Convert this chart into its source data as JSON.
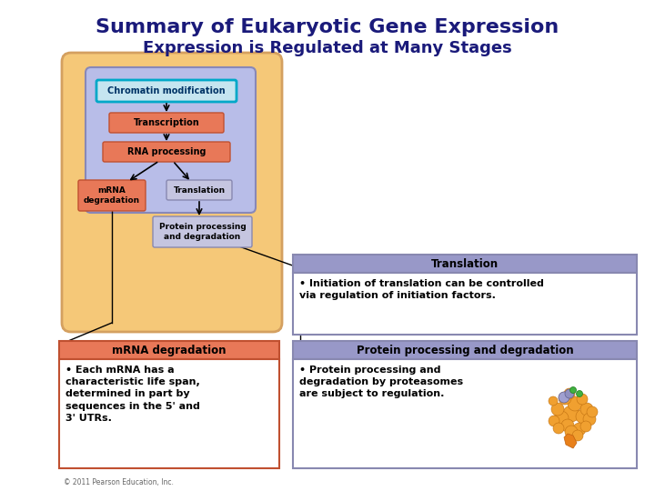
{
  "title_line1": "Summary of Eukaryotic Gene Expression",
  "title_line2": "Expression is Regulated at Many Stages",
  "title_color": "#1a1a7a",
  "bg_color": "#ffffff",
  "cell_bg": "#f5c878",
  "nucleus_bg": "#b8bde8",
  "box_salmon": "#e87858",
  "box_lavender": "#9090c0",
  "box_cyan_border": "#00a8c8",
  "box_cyan_fill": "#c5e5f0",
  "detail_bg": "#ffffff",
  "detail_header_salmon": "#e87858",
  "detail_header_lavender": "#9898c8",
  "mrna_box_title": "mRNA degradation",
  "mrna_box_text": "• Each mRNA has a\ncharacteristic life span,\ndetermined in part by\nsequences in the 5' and\n3' UTRs.",
  "translation_box_title": "Translation",
  "translation_box_text": "• Initiation of translation can be controlled\nvia regulation of initiation factors.",
  "protein_box_title": "Protein processing and degradation",
  "protein_box_text": "• Protein processing and\ndegradation by proteasomes\nare subject to regulation.",
  "copyright": "© 2011 Pearson Education, Inc."
}
